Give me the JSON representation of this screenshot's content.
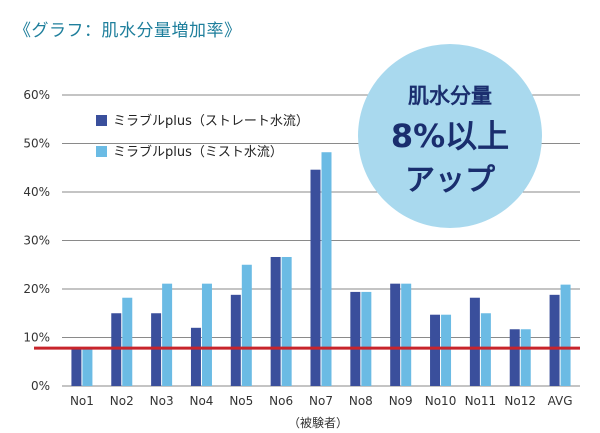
{
  "title": "《グラフ：肌水分量増加率》",
  "badge": {
    "line1": "肌水分量",
    "line2": "8%以上",
    "line3": "アップ"
  },
  "colors": {
    "series1": "#3a4f9c",
    "series2": "#6bbbe4",
    "grid": "#8a8a8a",
    "reference": "#c8242b",
    "badge": "#a9d9ee"
  },
  "chart_data": {
    "type": "bar",
    "title": "《グラフ：肌水分量増加率》",
    "xlabel": "（被験者）",
    "ylabel": "",
    "ylim": [
      0,
      60
    ],
    "yticks": [
      0,
      10,
      20,
      30,
      40,
      50,
      60
    ],
    "yticklabels": [
      "0%",
      "10%",
      "20%",
      "30%",
      "40%",
      "50%",
      "60%"
    ],
    "grid": true,
    "legend_position": "top-left",
    "categories": [
      "No1",
      "No2",
      "No3",
      "No4",
      "No5",
      "No6",
      "No7",
      "No8",
      "No9",
      "No10",
      "No11",
      "No12",
      "AVG"
    ],
    "series": [
      {
        "name": "ミラブルplus（ストレート水流）",
        "values": [
          7.8,
          15,
          15,
          12,
          18.8,
          26.6,
          44.6,
          19.4,
          21.1,
          14.7,
          18.2,
          11.7,
          18.8
        ]
      },
      {
        "name": "ミラブルplus（ミスト水流）",
        "values": [
          7.8,
          18.2,
          21.1,
          21.1,
          25,
          26.6,
          48.2,
          19.4,
          21.1,
          14.7,
          15,
          11.7,
          20.9
        ]
      }
    ],
    "reference_line": 7.8
  }
}
